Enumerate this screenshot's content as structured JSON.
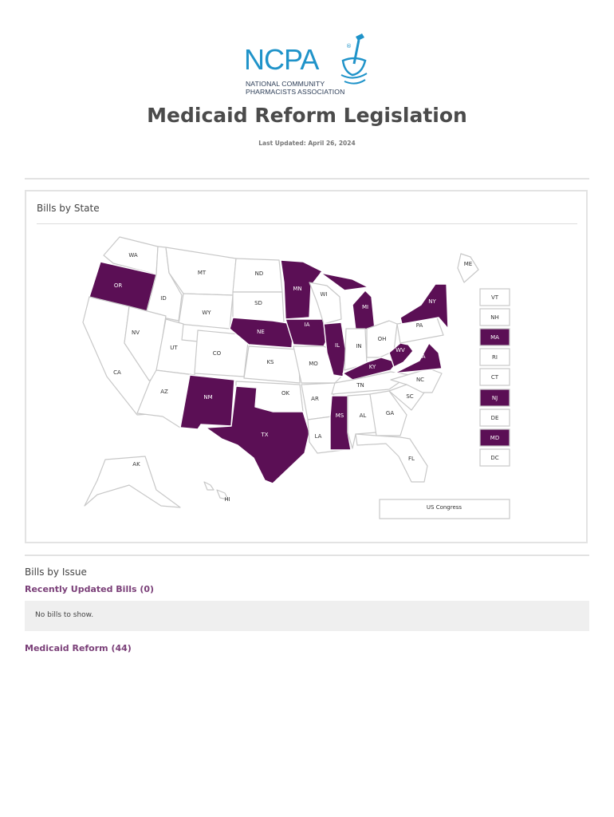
{
  "logo": {
    "wordmark": "NCPA",
    "registered": "®",
    "line1": "NATIONAL COMMUNITY",
    "line2": "PHARMACISTS ASSOCIATION",
    "icon": "mortar-pestle-icon"
  },
  "title": "Medicaid Reform Legislation",
  "updated": "Last Updated: April 26, 2024",
  "map_section": {
    "title": "Bills by State",
    "us_congress": "US Congress",
    "highlight_color": "#5b0f55",
    "states": [
      {
        "code": "WA",
        "active": false
      },
      {
        "code": "OR",
        "active": true
      },
      {
        "code": "CA",
        "active": false
      },
      {
        "code": "ID",
        "active": false
      },
      {
        "code": "NV",
        "active": false
      },
      {
        "code": "MT",
        "active": false
      },
      {
        "code": "WY",
        "active": false
      },
      {
        "code": "UT",
        "active": false
      },
      {
        "code": "AZ",
        "active": false
      },
      {
        "code": "CO",
        "active": false
      },
      {
        "code": "NM",
        "active": true
      },
      {
        "code": "ND",
        "active": false
      },
      {
        "code": "SD",
        "active": false
      },
      {
        "code": "NE",
        "active": true
      },
      {
        "code": "KS",
        "active": false
      },
      {
        "code": "OK",
        "active": false
      },
      {
        "code": "TX",
        "active": true
      },
      {
        "code": "MN",
        "active": true
      },
      {
        "code": "IA",
        "active": true
      },
      {
        "code": "MO",
        "active": false
      },
      {
        "code": "AR",
        "active": false
      },
      {
        "code": "LA",
        "active": false
      },
      {
        "code": "WI",
        "active": false
      },
      {
        "code": "IL",
        "active": true
      },
      {
        "code": "MI",
        "active": true
      },
      {
        "code": "IN",
        "active": false
      },
      {
        "code": "OH",
        "active": false
      },
      {
        "code": "KY",
        "active": true
      },
      {
        "code": "TN",
        "active": false
      },
      {
        "code": "MS",
        "active": true
      },
      {
        "code": "AL",
        "active": false
      },
      {
        "code": "GA",
        "active": false
      },
      {
        "code": "FL",
        "active": false
      },
      {
        "code": "SC",
        "active": false
      },
      {
        "code": "NC",
        "active": false
      },
      {
        "code": "VA",
        "active": true
      },
      {
        "code": "WV",
        "active": true
      },
      {
        "code": "PA",
        "active": false
      },
      {
        "code": "NY",
        "active": true
      },
      {
        "code": "ME",
        "active": false
      },
      {
        "code": "AK",
        "active": false
      },
      {
        "code": "HI",
        "active": false
      }
    ],
    "small_states": [
      {
        "code": "VT",
        "active": false
      },
      {
        "code": "NH",
        "active": false
      },
      {
        "code": "MA",
        "active": true
      },
      {
        "code": "RI",
        "active": false
      },
      {
        "code": "CT",
        "active": false
      },
      {
        "code": "NJ",
        "active": true
      },
      {
        "code": "DE",
        "active": false
      },
      {
        "code": "MD",
        "active": true
      },
      {
        "code": "DC",
        "active": false
      }
    ]
  },
  "issues": {
    "heading": "Bills by Issue",
    "recent_label": "Recently Updated Bills (0)",
    "empty_text": "No bills to show.",
    "medicaid_label": "Medicaid Reform (44)"
  }
}
